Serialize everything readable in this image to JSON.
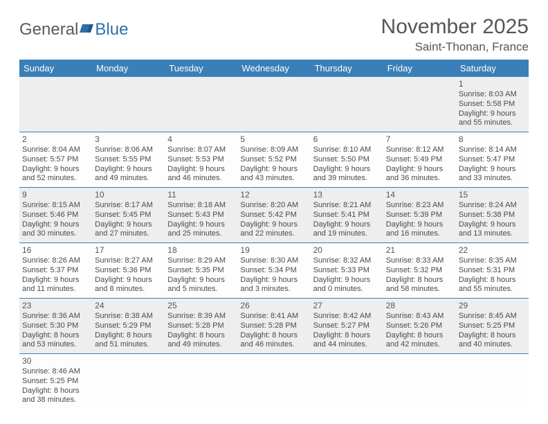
{
  "logo": {
    "text1": "General",
    "text2": "Blue"
  },
  "title": "November 2025",
  "location": "Saint-Thonan, France",
  "weekdays": [
    "Sunday",
    "Monday",
    "Tuesday",
    "Wednesday",
    "Thursday",
    "Friday",
    "Saturday"
  ],
  "colors": {
    "header_bg": "#3a7fb8",
    "header_text": "#ffffff",
    "row_shade": "#eeeeee",
    "row_plain": "#fdfdfd",
    "text": "#4a4a4a",
    "border": "#3a7fb8"
  },
  "weeks": [
    {
      "shade": true,
      "days": [
        null,
        null,
        null,
        null,
        null,
        null,
        {
          "n": "1",
          "sunrise": "Sunrise: 8:03 AM",
          "sunset": "Sunset: 5:58 PM",
          "day1": "Daylight: 9 hours",
          "day2": "and 55 minutes."
        }
      ]
    },
    {
      "shade": false,
      "days": [
        {
          "n": "2",
          "sunrise": "Sunrise: 8:04 AM",
          "sunset": "Sunset: 5:57 PM",
          "day1": "Daylight: 9 hours",
          "day2": "and 52 minutes."
        },
        {
          "n": "3",
          "sunrise": "Sunrise: 8:06 AM",
          "sunset": "Sunset: 5:55 PM",
          "day1": "Daylight: 9 hours",
          "day2": "and 49 minutes."
        },
        {
          "n": "4",
          "sunrise": "Sunrise: 8:07 AM",
          "sunset": "Sunset: 5:53 PM",
          "day1": "Daylight: 9 hours",
          "day2": "and 46 minutes."
        },
        {
          "n": "5",
          "sunrise": "Sunrise: 8:09 AM",
          "sunset": "Sunset: 5:52 PM",
          "day1": "Daylight: 9 hours",
          "day2": "and 43 minutes."
        },
        {
          "n": "6",
          "sunrise": "Sunrise: 8:10 AM",
          "sunset": "Sunset: 5:50 PM",
          "day1": "Daylight: 9 hours",
          "day2": "and 39 minutes."
        },
        {
          "n": "7",
          "sunrise": "Sunrise: 8:12 AM",
          "sunset": "Sunset: 5:49 PM",
          "day1": "Daylight: 9 hours",
          "day2": "and 36 minutes."
        },
        {
          "n": "8",
          "sunrise": "Sunrise: 8:14 AM",
          "sunset": "Sunset: 5:47 PM",
          "day1": "Daylight: 9 hours",
          "day2": "and 33 minutes."
        }
      ]
    },
    {
      "shade": true,
      "days": [
        {
          "n": "9",
          "sunrise": "Sunrise: 8:15 AM",
          "sunset": "Sunset: 5:46 PM",
          "day1": "Daylight: 9 hours",
          "day2": "and 30 minutes."
        },
        {
          "n": "10",
          "sunrise": "Sunrise: 8:17 AM",
          "sunset": "Sunset: 5:45 PM",
          "day1": "Daylight: 9 hours",
          "day2": "and 27 minutes."
        },
        {
          "n": "11",
          "sunrise": "Sunrise: 8:18 AM",
          "sunset": "Sunset: 5:43 PM",
          "day1": "Daylight: 9 hours",
          "day2": "and 25 minutes."
        },
        {
          "n": "12",
          "sunrise": "Sunrise: 8:20 AM",
          "sunset": "Sunset: 5:42 PM",
          "day1": "Daylight: 9 hours",
          "day2": "and 22 minutes."
        },
        {
          "n": "13",
          "sunrise": "Sunrise: 8:21 AM",
          "sunset": "Sunset: 5:41 PM",
          "day1": "Daylight: 9 hours",
          "day2": "and 19 minutes."
        },
        {
          "n": "14",
          "sunrise": "Sunrise: 8:23 AM",
          "sunset": "Sunset: 5:39 PM",
          "day1": "Daylight: 9 hours",
          "day2": "and 16 minutes."
        },
        {
          "n": "15",
          "sunrise": "Sunrise: 8:24 AM",
          "sunset": "Sunset: 5:38 PM",
          "day1": "Daylight: 9 hours",
          "day2": "and 13 minutes."
        }
      ]
    },
    {
      "shade": false,
      "days": [
        {
          "n": "16",
          "sunrise": "Sunrise: 8:26 AM",
          "sunset": "Sunset: 5:37 PM",
          "day1": "Daylight: 9 hours",
          "day2": "and 11 minutes."
        },
        {
          "n": "17",
          "sunrise": "Sunrise: 8:27 AM",
          "sunset": "Sunset: 5:36 PM",
          "day1": "Daylight: 9 hours",
          "day2": "and 8 minutes."
        },
        {
          "n": "18",
          "sunrise": "Sunrise: 8:29 AM",
          "sunset": "Sunset: 5:35 PM",
          "day1": "Daylight: 9 hours",
          "day2": "and 5 minutes."
        },
        {
          "n": "19",
          "sunrise": "Sunrise: 8:30 AM",
          "sunset": "Sunset: 5:34 PM",
          "day1": "Daylight: 9 hours",
          "day2": "and 3 minutes."
        },
        {
          "n": "20",
          "sunrise": "Sunrise: 8:32 AM",
          "sunset": "Sunset: 5:33 PM",
          "day1": "Daylight: 9 hours",
          "day2": "and 0 minutes."
        },
        {
          "n": "21",
          "sunrise": "Sunrise: 8:33 AM",
          "sunset": "Sunset: 5:32 PM",
          "day1": "Daylight: 8 hours",
          "day2": "and 58 minutes."
        },
        {
          "n": "22",
          "sunrise": "Sunrise: 8:35 AM",
          "sunset": "Sunset: 5:31 PM",
          "day1": "Daylight: 8 hours",
          "day2": "and 55 minutes."
        }
      ]
    },
    {
      "shade": true,
      "days": [
        {
          "n": "23",
          "sunrise": "Sunrise: 8:36 AM",
          "sunset": "Sunset: 5:30 PM",
          "day1": "Daylight: 8 hours",
          "day2": "and 53 minutes."
        },
        {
          "n": "24",
          "sunrise": "Sunrise: 8:38 AM",
          "sunset": "Sunset: 5:29 PM",
          "day1": "Daylight: 8 hours",
          "day2": "and 51 minutes."
        },
        {
          "n": "25",
          "sunrise": "Sunrise: 8:39 AM",
          "sunset": "Sunset: 5:28 PM",
          "day1": "Daylight: 8 hours",
          "day2": "and 49 minutes."
        },
        {
          "n": "26",
          "sunrise": "Sunrise: 8:41 AM",
          "sunset": "Sunset: 5:28 PM",
          "day1": "Daylight: 8 hours",
          "day2": "and 46 minutes."
        },
        {
          "n": "27",
          "sunrise": "Sunrise: 8:42 AM",
          "sunset": "Sunset: 5:27 PM",
          "day1": "Daylight: 8 hours",
          "day2": "and 44 minutes."
        },
        {
          "n": "28",
          "sunrise": "Sunrise: 8:43 AM",
          "sunset": "Sunset: 5:26 PM",
          "day1": "Daylight: 8 hours",
          "day2": "and 42 minutes."
        },
        {
          "n": "29",
          "sunrise": "Sunrise: 8:45 AM",
          "sunset": "Sunset: 5:25 PM",
          "day1": "Daylight: 8 hours",
          "day2": "and 40 minutes."
        }
      ]
    },
    {
      "shade": false,
      "last": true,
      "days": [
        {
          "n": "30",
          "sunrise": "Sunrise: 8:46 AM",
          "sunset": "Sunset: 5:25 PM",
          "day1": "Daylight: 8 hours",
          "day2": "and 38 minutes."
        },
        null,
        null,
        null,
        null,
        null,
        null
      ]
    }
  ]
}
